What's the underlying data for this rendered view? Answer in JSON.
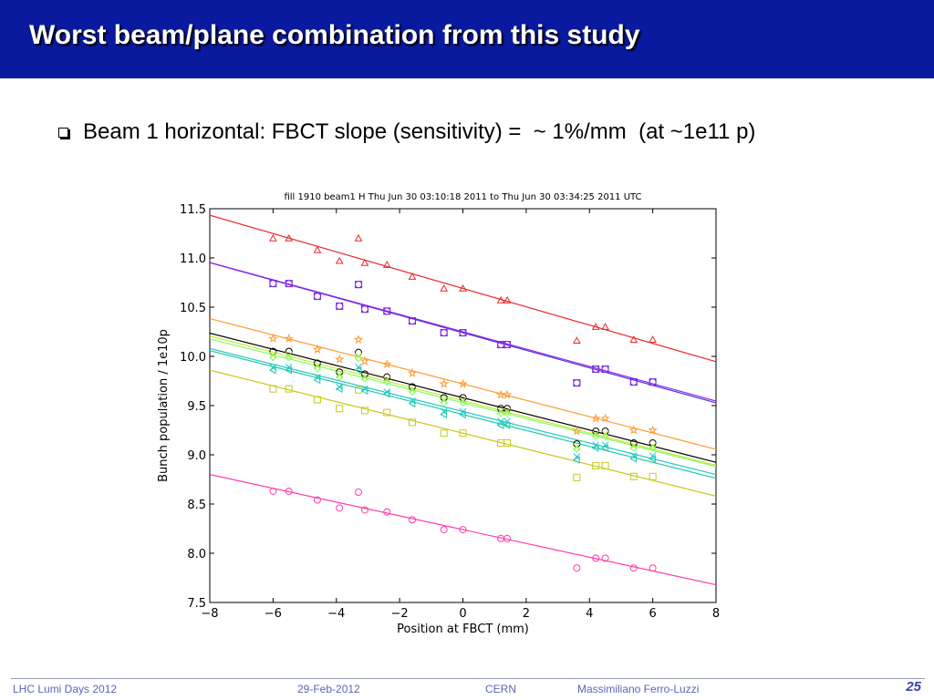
{
  "slide": {
    "title": "Worst beam/plane combination from this study",
    "bullet": "Beam 1 horizontal: FBCT slope (sensitivity) =  ~ 1%/mm  (at ~1e11 p)"
  },
  "footer": {
    "event": "LHC Lumi Days 2012",
    "date": "29-Feb-2012",
    "org": "CERN",
    "author": "Massimiliano Ferro-Luzzi",
    "page": "25"
  },
  "colors": {
    "title_bar": "#0a1a9e",
    "footer_text": "#5b63b8"
  },
  "chart_data": {
    "type": "scatter",
    "title": "fill 1910 beam1 H  Thu Jun 30 03:10:18 2011 to Thu Jun 30 03:34:25 2011 UTC",
    "xlabel": "Position at FBCT (mm)",
    "ylabel": "Bunch population / 1e10p",
    "xlim": [
      -8,
      8
    ],
    "ylim": [
      7.5,
      11.5
    ],
    "xticks": [
      -8,
      -6,
      -4,
      -2,
      0,
      2,
      4,
      6,
      8
    ],
    "yticks": [
      7.5,
      8.0,
      8.5,
      9.0,
      9.5,
      10.0,
      10.5,
      11.0,
      11.5
    ],
    "xtick_labels": [
      "−8",
      "−6",
      "−4",
      "−2",
      "0",
      "2",
      "4",
      "6",
      "8"
    ],
    "ytick_labels": [
      "7.5",
      "8.0",
      "8.5",
      "9.0",
      "9.5",
      "10.0",
      "10.5",
      "11.0",
      "11.5"
    ],
    "grid": false,
    "legend": "none",
    "x": [
      -6.0,
      -5.5,
      -4.6,
      -3.9,
      -3.3,
      -3.1,
      -2.4,
      -1.6,
      -0.6,
      0.0,
      1.2,
      1.4,
      3.6,
      4.2,
      4.5,
      5.4,
      6.0
    ],
    "series": [
      {
        "marker": "triangle",
        "color": "#e8282a",
        "fit": [
          -0.093,
          10.69
        ],
        "y": [
          11.2,
          11.2,
          11.08,
          10.97,
          11.2,
          10.95,
          10.93,
          10.81,
          10.69,
          10.69,
          10.57,
          10.57,
          10.16,
          10.3,
          10.3,
          10.17,
          10.17
        ]
      },
      {
        "marker": "square",
        "color": "#3c3cd8",
        "fit": [
          -0.089,
          10.24
        ],
        "y": [
          10.74,
          10.74,
          10.61,
          10.51,
          10.73,
          10.48,
          10.46,
          10.36,
          10.24,
          10.24,
          10.12,
          10.12,
          9.73,
          9.87,
          9.87,
          9.74,
          9.74
        ]
      },
      {
        "marker": "circle",
        "color": "#a020f0",
        "fit": [
          -0.088,
          10.25
        ],
        "y": [
          10.74,
          10.74,
          10.61,
          10.51,
          10.73,
          10.48,
          10.46,
          10.36,
          10.24,
          10.24,
          10.12,
          10.12,
          9.73,
          9.87,
          9.87,
          9.74,
          9.74
        ]
      },
      {
        "marker": "star",
        "color": "#ff9a2e",
        "fit": [
          -0.083,
          9.72
        ],
        "y": [
          10.18,
          10.18,
          10.07,
          9.97,
          10.17,
          9.95,
          9.92,
          9.83,
          9.72,
          9.72,
          9.61,
          9.61,
          9.24,
          9.37,
          9.37,
          9.25,
          9.25
        ]
      },
      {
        "marker": "circle",
        "color": "#000000",
        "fit": [
          -0.082,
          9.58
        ],
        "y": [
          10.05,
          10.05,
          9.93,
          9.84,
          10.04,
          9.82,
          9.79,
          9.69,
          9.58,
          9.58,
          9.47,
          9.47,
          9.11,
          9.24,
          9.24,
          9.12,
          9.12
        ]
      },
      {
        "marker": "x",
        "color": "#c8e832",
        "fit": [
          -0.082,
          9.55
        ],
        "y": [
          10.01,
          10.01,
          9.9,
          9.81,
          10.0,
          9.79,
          9.76,
          9.66,
          9.55,
          9.55,
          9.44,
          9.44,
          9.08,
          9.21,
          9.21,
          9.09,
          9.09
        ]
      },
      {
        "marker": "diamond",
        "color": "#7cff6a",
        "fit": [
          -0.081,
          9.53
        ],
        "y": [
          9.99,
          9.99,
          9.88,
          9.79,
          9.98,
          9.77,
          9.74,
          9.64,
          9.53,
          9.53,
          9.42,
          9.42,
          9.06,
          9.19,
          9.19,
          9.07,
          9.07
        ]
      },
      {
        "marker": "tri-left",
        "color": "#20c8a8",
        "fit": [
          -0.081,
          9.41
        ],
        "y": [
          9.86,
          9.86,
          9.76,
          9.67,
          9.86,
          9.65,
          9.62,
          9.52,
          9.41,
          9.41,
          9.3,
          9.3,
          8.95,
          9.07,
          9.07,
          8.96,
          8.96
        ]
      },
      {
        "marker": "x",
        "color": "#20c8c8",
        "fit": [
          -0.08,
          9.44
        ],
        "y": [
          9.89,
          9.89,
          9.79,
          9.69,
          9.89,
          9.67,
          9.64,
          9.55,
          9.44,
          9.44,
          9.34,
          9.34,
          8.98,
          9.1,
          9.1,
          8.99,
          8.99
        ]
      },
      {
        "marker": "square",
        "color": "#c8c820",
        "fit": [
          -0.08,
          9.22
        ],
        "y": [
          9.67,
          9.67,
          9.56,
          9.47,
          9.66,
          9.45,
          9.43,
          9.33,
          9.22,
          9.22,
          9.12,
          9.12,
          8.77,
          8.89,
          8.89,
          8.78,
          8.78
        ]
      },
      {
        "marker": "circle",
        "color": "#ff3caa",
        "fit": [
          -0.07,
          8.24
        ],
        "y": [
          8.63,
          8.63,
          8.54,
          8.46,
          8.62,
          8.44,
          8.42,
          8.34,
          8.24,
          8.24,
          8.15,
          8.15,
          7.85,
          7.95,
          7.95,
          7.85,
          7.85
        ]
      }
    ]
  }
}
